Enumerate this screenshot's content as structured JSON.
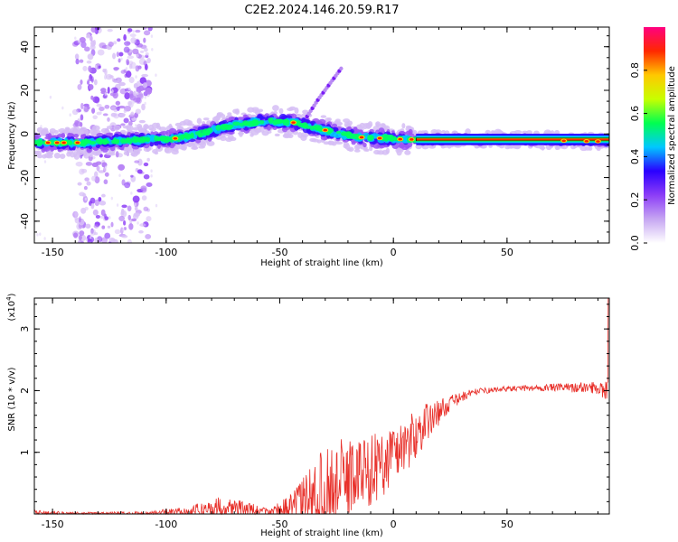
{
  "title": "C2E2.2024.146.20.59.R17",
  "chart_data": [
    {
      "type": "heatmap",
      "xlabel": "Height of straight line (km)",
      "ylabel": "Frequency (Hz)",
      "xlim": [
        -158,
        95
      ],
      "ylim": [
        -50,
        49
      ],
      "xticks": [
        -150,
        -100,
        -50,
        0,
        50
      ],
      "yticks": [
        40,
        20,
        0,
        -20,
        -40
      ],
      "xticklabels": [
        "-150",
        "-100",
        "-50",
        "0",
        "50"
      ],
      "yticklabels": [
        "40",
        "20",
        "0",
        "-20",
        "-40"
      ],
      "colorbar": {
        "label": "Normalized spectral amplitude",
        "range": [
          0,
          1
        ],
        "ticks": [
          0.0,
          0.2,
          0.4,
          0.6,
          0.8
        ],
        "ticklabels": [
          "0.0",
          "0.2",
          "0.4",
          "0.6",
          "0.8"
        ],
        "colors": [
          "#ffffff",
          "#c6a6f2",
          "#8c3df7",
          "#2a00ff",
          "#00c8ff",
          "#00ff50",
          "#c8ff00",
          "#ffc800",
          "#ff2800",
          "#ff0080"
        ]
      },
      "ridge": {
        "x": [
          -158,
          -145,
          -135,
          -125,
          -115,
          -105,
          -95,
          -85,
          -75,
          -65,
          -55,
          -45,
          -35,
          -25,
          -15,
          -5,
          5,
          15,
          30,
          50,
          70,
          95
        ],
        "y": [
          -4,
          -4,
          -4,
          -3.5,
          -3,
          -2.5,
          -2,
          0,
          3,
          5,
          6,
          5.5,
          3,
          0.5,
          -1.5,
          -2,
          -2.5,
          -2.5,
          -2.5,
          -2.5,
          -3,
          -3.5
        ]
      },
      "branch": {
        "x": [
          -38,
          -33,
          -28,
          -23
        ],
        "y": [
          8,
          16,
          23,
          30
        ]
      }
    },
    {
      "type": "line",
      "xlabel": "Height of straight line (km)",
      "ylabel": "SNR (10 * v/v)",
      "scale_label_base": "(x10",
      "scale_label_exp": "4",
      "scale_label_end": ")",
      "xlim": [
        -158,
        95
      ],
      "ylim": [
        0,
        3.5
      ],
      "xticks": [
        -150,
        -100,
        -50,
        0,
        50
      ],
      "yticks": [
        1,
        2,
        3
      ],
      "xticklabels": [
        "-150",
        "-100",
        "-50",
        "0",
        "50"
      ],
      "yticklabels": [
        "1",
        "2",
        "3"
      ],
      "line_color": "#e8302a",
      "envelope": {
        "x": [
          -158,
          -140,
          -110,
          -90,
          -75,
          -65,
          -55,
          -45,
          -38,
          -33,
          -28,
          -20,
          -12,
          -5,
          0,
          8,
          15,
          25,
          35,
          50,
          70,
          90,
          95
        ],
        "base": [
          0.02,
          0.01,
          0.01,
          0.04,
          0.12,
          0.08,
          0.03,
          0.12,
          0.25,
          0.35,
          0.45,
          0.6,
          0.7,
          0.8,
          1.0,
          1.2,
          1.5,
          1.8,
          1.98,
          2.03,
          2.05,
          2.05,
          2.0
        ],
        "amp": [
          0.04,
          0.02,
          0.03,
          0.08,
          0.18,
          0.12,
          0.06,
          0.2,
          0.45,
          0.6,
          0.7,
          0.65,
          0.6,
          0.55,
          0.5,
          0.45,
          0.3,
          0.12,
          0.05,
          0.04,
          0.06,
          0.1,
          0.2
        ]
      }
    }
  ]
}
